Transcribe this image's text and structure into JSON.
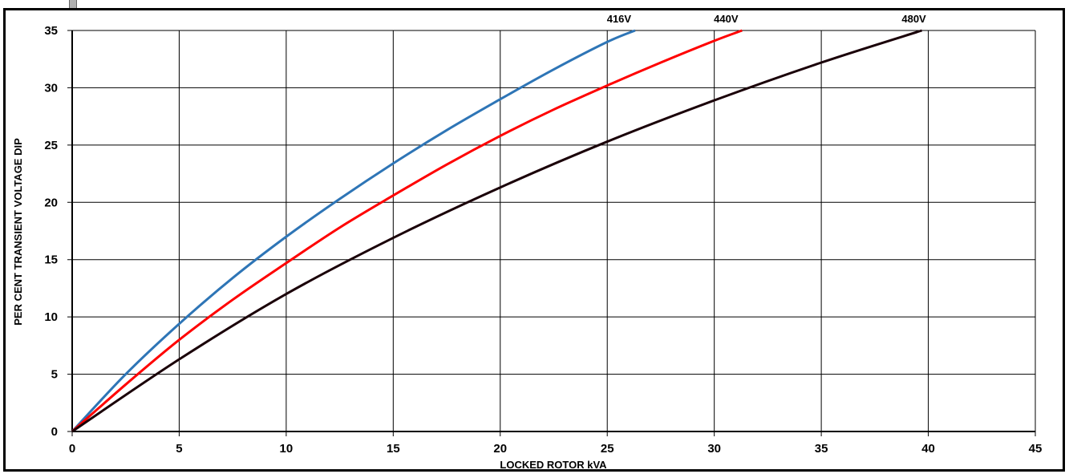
{
  "chart_data": {
    "type": "line",
    "title": "",
    "xlabel": "LOCKED ROTOR kVA",
    "ylabel": "PER CENT TRANSIENT VOLTAGE DIP",
    "xlim": [
      0,
      45
    ],
    "ylim": [
      0,
      35
    ],
    "x_ticks": [
      0,
      5,
      10,
      15,
      20,
      25,
      30,
      35,
      40,
      45
    ],
    "y_ticks": [
      0,
      5,
      10,
      15,
      20,
      25,
      30,
      35
    ],
    "grid": true,
    "legend": "labels at top end of each curve",
    "series": [
      {
        "name": "416V",
        "color": "#2e75b6",
        "x": [
          0,
          2.5,
          5,
          7.5,
          10,
          12.5,
          15,
          17.5,
          20,
          22.5,
          25,
          26.3
        ],
        "y": [
          0,
          5.0,
          9.4,
          13.4,
          17.0,
          20.3,
          23.4,
          26.3,
          29.0,
          31.6,
          34.0,
          35
        ]
      },
      {
        "name": "440V",
        "color": "#ff0000",
        "x": [
          0,
          2.5,
          5,
          7.5,
          10,
          12.5,
          15,
          17.5,
          20,
          22.5,
          25,
          27.5,
          30,
          31.3
        ],
        "y": [
          0,
          4.1,
          8.0,
          11.5,
          14.7,
          17.8,
          20.6,
          23.3,
          25.8,
          28.1,
          30.2,
          32.2,
          34.1,
          35
        ]
      },
      {
        "name": "480V",
        "color": "#1a0008",
        "x": [
          0,
          5,
          10,
          15,
          20,
          25,
          30,
          35,
          39.7
        ],
        "y": [
          0,
          6.3,
          12.0,
          16.9,
          21.3,
          25.3,
          28.9,
          32.2,
          35
        ]
      }
    ]
  }
}
